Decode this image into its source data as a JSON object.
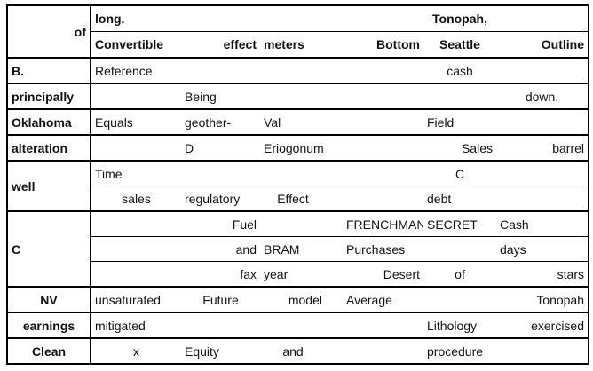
{
  "header": {
    "row1": {
      "label": "of",
      "c1": "long.",
      "c6": "Tonopah,"
    },
    "row2": {
      "c1": "Convertible",
      "c2": "effect",
      "c3": "meters",
      "c5": "Bottom",
      "c6": "Seattle",
      "c7": "Outline"
    }
  },
  "rows": {
    "b": {
      "label": "B.",
      "c1": "Reference",
      "c6": "cash"
    },
    "principally": {
      "label": "principally",
      "c2": "Being",
      "c7": "down."
    },
    "oklahoma": {
      "label": "Oklahoma",
      "c1": "Equals",
      "c2": "geother-",
      "c3": "Val",
      "c6": "Field"
    },
    "alteration": {
      "label": "alteration",
      "c2": "D",
      "c3": "Eriogonum",
      "c6": "Sales",
      "c7": "barrel"
    },
    "well": {
      "label": "well",
      "r1": {
        "c1": "Time",
        "c6": "C"
      },
      "r2": {
        "c1": "sales",
        "c2": "regulatory",
        "c3": "Effect",
        "c6": "debt"
      }
    },
    "c": {
      "label": "C",
      "r1": {
        "c2": "Fuel",
        "c5": "FRENCHMAN",
        "c6": "SECRET",
        "c7": "Cash"
      },
      "r2": {
        "c2": "and",
        "c3": "BRAM",
        "c5": "Purchases",
        "c7": "days"
      },
      "r3": {
        "c2": "fax",
        "c3": "year",
        "c5": "Desert",
        "c6": "of",
        "c7": "stars"
      }
    },
    "nv": {
      "label": "NV",
      "c1": "unsaturated",
      "c2": "Future",
      "c3": "model",
      "c5": "Average",
      "c7": "Tonopah"
    },
    "earnings": {
      "label": "earnings",
      "c1": "mitigated",
      "c6": "Lithology",
      "c7": "exercised"
    },
    "clean": {
      "label": "Clean",
      "c1": "x",
      "c2": "Equity",
      "c3": "and",
      "c6": "procedure"
    }
  }
}
